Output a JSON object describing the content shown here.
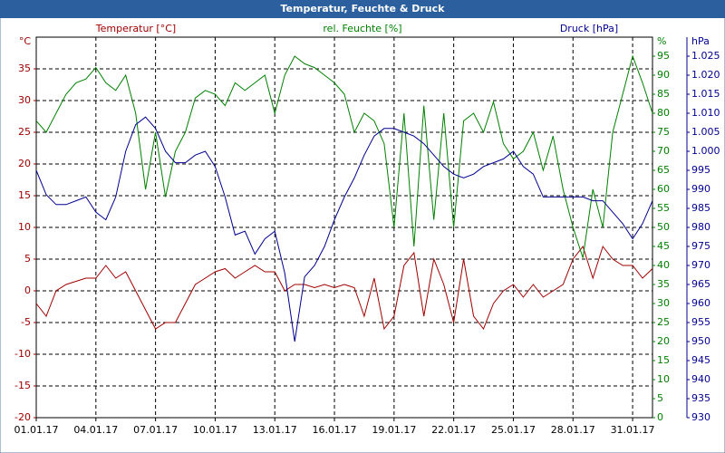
{
  "chart_data": {
    "type": "line",
    "title": "Temperatur, Feuchte & Druck",
    "x": [
      0,
      0.5,
      1,
      1.5,
      2,
      2.5,
      3,
      3.5,
      4,
      4.5,
      5,
      5.5,
      6,
      6.5,
      7,
      7.5,
      8,
      8.5,
      9,
      9.5,
      10,
      10.5,
      11,
      11.5,
      12,
      12.5,
      13,
      13.5,
      14,
      14.5,
      15,
      15.5,
      16,
      16.5,
      17,
      17.5,
      18,
      18.5,
      19,
      19.5,
      20,
      20.5,
      21,
      21.5,
      22,
      22.5,
      23,
      23.5,
      24,
      24.5,
      25,
      25.5,
      26,
      26.5,
      27,
      27.5,
      28,
      28.5,
      29,
      29.5,
      30,
      30.5,
      31
    ],
    "xlim": [
      0,
      31
    ],
    "xticks": [
      {
        "value": 0,
        "label": "01.01.17"
      },
      {
        "value": 3,
        "label": "04.01.17"
      },
      {
        "value": 6,
        "label": "07.01.17"
      },
      {
        "value": 9,
        "label": "10.01.17"
      },
      {
        "value": 12,
        "label": "13.01.17"
      },
      {
        "value": 15,
        "label": "16.01.17"
      },
      {
        "value": 18,
        "label": "19.01.17"
      },
      {
        "value": 21,
        "label": "22.01.17"
      },
      {
        "value": 24,
        "label": "25.01.17"
      },
      {
        "value": 27,
        "label": "28.01.17"
      },
      {
        "value": 30,
        "label": "31.01.17"
      }
    ],
    "y_unit": "°C",
    "ylim": [
      -20,
      40
    ],
    "yticks": [
      -20,
      -15,
      -10,
      -5,
      0,
      5,
      10,
      15,
      20,
      25,
      30,
      35
    ],
    "y2_unit": "%",
    "y2lim": [
      0,
      100
    ],
    "y2ticks": [
      0,
      5,
      10,
      15,
      20,
      25,
      30,
      35,
      40,
      45,
      50,
      55,
      60,
      65,
      70,
      75,
      80,
      85,
      90,
      95
    ],
    "y3_unit": "hPa",
    "y3lim": [
      930,
      1030
    ],
    "y3ticks": [
      930,
      935,
      940,
      945,
      950,
      955,
      960,
      965,
      970,
      975,
      980,
      985,
      990,
      995,
      {
        "value": 1000,
        "label": "1.000"
      },
      {
        "value": 1005,
        "label": "1.005"
      },
      {
        "value": 1010,
        "label": "1.010"
      },
      {
        "value": 1015,
        "label": "1.015"
      },
      {
        "value": 1020,
        "label": "1.020"
      },
      {
        "value": 1025,
        "label": "1.025"
      }
    ],
    "grid": true,
    "series": [
      {
        "name": "Temperatur [°C]",
        "color": "#a00000",
        "axis": "y",
        "values": [
          -2,
          -4,
          0,
          1,
          1.5,
          2,
          2,
          4,
          2,
          3,
          0,
          -3,
          -6,
          -5,
          -5,
          -2,
          1,
          2,
          3,
          3.5,
          2,
          3,
          4,
          3,
          3,
          0,
          1,
          1,
          0.5,
          1,
          0.5,
          1,
          0.5,
          -4,
          2,
          -6,
          -4,
          4,
          6,
          -4,
          5,
          1,
          -5,
          5,
          -4,
          -6,
          -2,
          0,
          1,
          -1,
          1,
          -1,
          0,
          1,
          5,
          7,
          2,
          7,
          5,
          4,
          4,
          2,
          3.5
        ]
      },
      {
        "name": "rel. Feuchte [%]",
        "color": "#008000",
        "axis": "y2",
        "values": [
          78,
          75,
          80,
          85,
          88,
          89,
          92,
          88,
          86,
          90,
          80,
          60,
          75,
          58,
          70,
          75,
          84,
          86,
          85,
          82,
          88,
          86,
          88,
          90,
          80,
          90,
          95,
          93,
          92,
          90,
          88,
          85,
          75,
          80,
          78,
          72,
          50,
          80,
          45,
          82,
          52,
          80,
          50,
          78,
          80,
          75,
          83,
          72,
          68,
          70,
          75,
          65,
          74,
          60,
          50,
          42,
          60,
          50,
          75,
          85,
          95,
          88,
          80
        ]
      },
      {
        "name": "Druck [hPa]",
        "color": "#000090",
        "axis": "y3",
        "values": [
          995,
          988.6,
          986,
          986,
          987,
          988,
          984,
          982,
          988,
          1000,
          1007,
          1009,
          1006,
          1000,
          997,
          997,
          999,
          1000,
          996,
          988,
          978,
          979,
          973,
          977,
          979,
          968,
          950,
          967,
          970,
          975,
          982,
          988,
          993,
          999,
          1004,
          1006,
          1006,
          1005,
          1004,
          1002,
          999,
          996,
          994,
          993,
          994,
          996,
          997,
          998,
          1000,
          996,
          994,
          988,
          988,
          988,
          988,
          988,
          987,
          987,
          984,
          981,
          977,
          981,
          987
        ]
      }
    ]
  }
}
